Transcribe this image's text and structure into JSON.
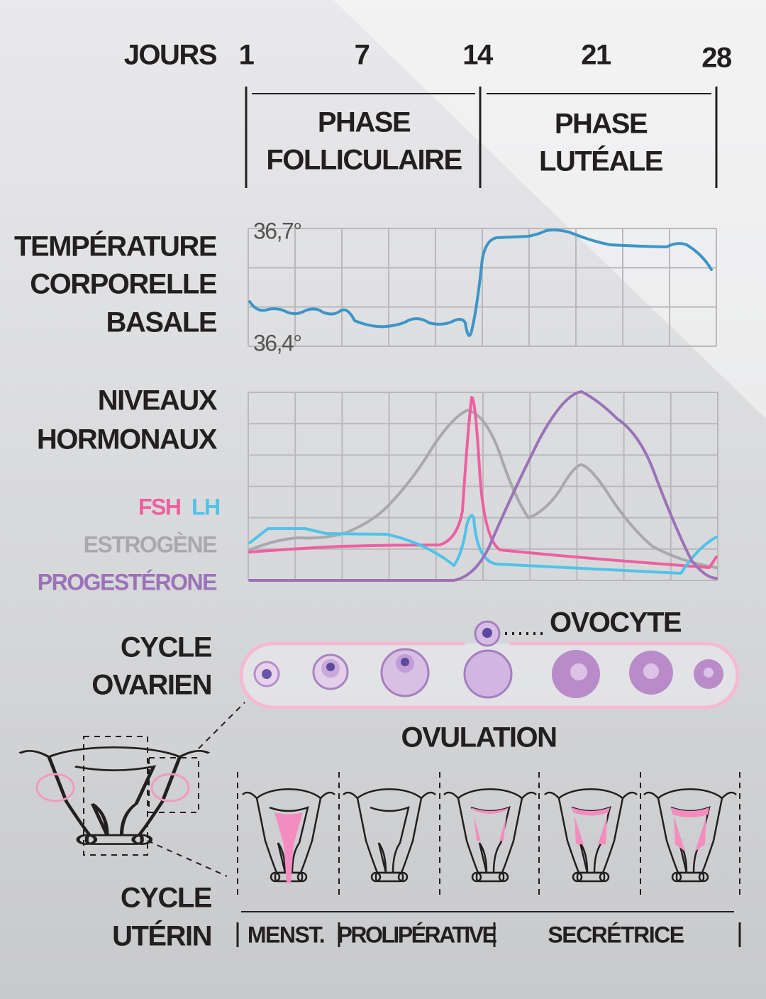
{
  "days": {
    "label": "JOURS",
    "ticks": [
      "1",
      "7",
      "14",
      "21",
      "28"
    ]
  },
  "phases": [
    {
      "lines": [
        "PHASE",
        "FOLLICULAIRE"
      ]
    },
    {
      "lines": [
        "PHASE",
        "LUTÉALE"
      ]
    }
  ],
  "temperature": {
    "label": [
      "TEMPÉRATURE",
      "CORPORELLE",
      "BASALE"
    ],
    "max_label": "36,7°",
    "min_label": "36,4°"
  },
  "hormones": {
    "label": [
      "NIVEAUX",
      "HORMONAUX"
    ],
    "legend": [
      {
        "name": "FSH",
        "color": "#ee5fa0"
      },
      {
        "name": "LH",
        "color": "#4fc3ea"
      },
      {
        "name": "ESTROGÈNE",
        "color": "#a9a9ab"
      },
      {
        "name": "PROGESTÉRONE",
        "color": "#9b72b8"
      }
    ]
  },
  "ovarian": {
    "label": [
      "CYCLE",
      "OVARIEN"
    ],
    "oocyte": "OVOCYTE",
    "ovulation": "OVULATION"
  },
  "uterine": {
    "label": [
      "CYCLE",
      "UTÉRIN"
    ],
    "phases": [
      "MENST.",
      "PROLIPÉRATIVE",
      "SECRÉTRICE"
    ]
  }
}
